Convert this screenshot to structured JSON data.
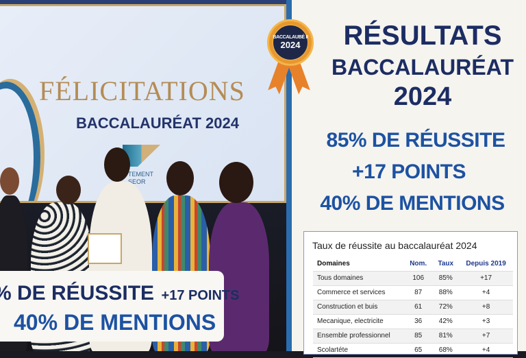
{
  "photo": {
    "screen_title": "FÉLICITATIONS",
    "screen_subtitle": "BACCALAURÉAT 2024",
    "logo_text_1": "TEMENT",
    "logo_text_2": "SEOR",
    "caption_line1_a": "% DE RÉUSSITE",
    "caption_line1_b": "+17 POINTS",
    "caption_line2": "40% DE MENTIONS"
  },
  "badge": {
    "line1": "BACCALAUBÉ II",
    "line2": "2024"
  },
  "headline": {
    "line1": "RÉSULTATS",
    "line2": "BACCALAURÉAT",
    "line3": "2024"
  },
  "stats": {
    "success": "85% DE RÉUSSITE",
    "points": "+17 POINTS",
    "mentions": "40% DE MENTIONS"
  },
  "colors": {
    "navy": "#1c2d63",
    "blue": "#1d52a2",
    "gold": "#b48c55",
    "orange": "#e8982e"
  },
  "table": {
    "title": "Taux de réussite au baccalauréat 2024",
    "headers": [
      "Domaines",
      "Nom.",
      "Taux",
      "Depuis 2019"
    ],
    "rows": [
      [
        "Tous domaines",
        "106",
        "85%",
        "+17"
      ],
      [
        "Commerce et services",
        "87",
        "88%",
        "+4"
      ],
      [
        "Construction et buis",
        "61",
        "72%",
        "+8"
      ],
      [
        "Mecanique, electricite",
        "36",
        "42%",
        "+3"
      ],
      [
        "Ensemble professionnel",
        "85",
        "81%",
        "+7"
      ],
      [
        "Scolartéte",
        "65",
        "68%",
        "+4"
      ]
    ]
  }
}
